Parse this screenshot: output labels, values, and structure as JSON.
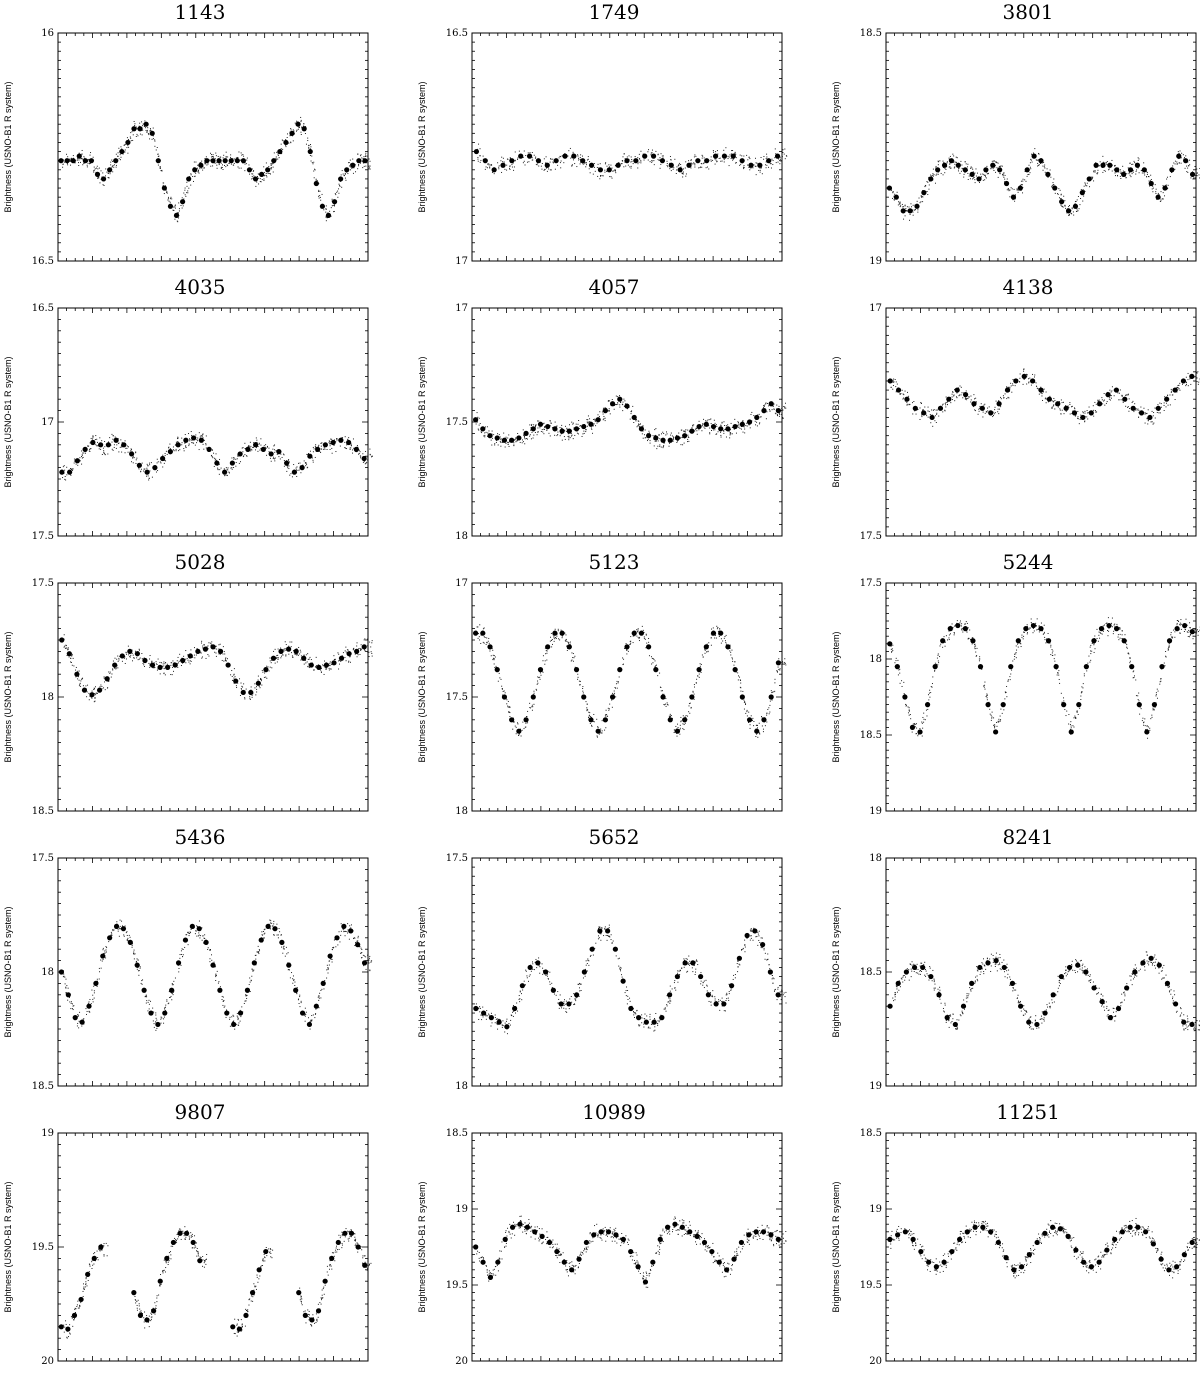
{
  "ylabel": "Brightness (USNO-B1 R system)",
  "charts": [
    {
      "title": "1143",
      "ylim": [
        16,
        16.5
      ],
      "yticks": [
        "16",
        "16.5"
      ],
      "series": [
        {
          "name": "",
          "values": [
            16.28,
            16.28,
            16.28,
            16.27,
            16.28,
            16.28,
            16.31,
            16.32,
            16.3,
            16.28,
            16.26,
            16.24,
            16.21,
            16.21,
            16.2,
            16.22,
            16.28,
            16.34,
            16.38,
            16.4,
            16.37,
            16.32,
            16.3,
            16.29,
            16.28,
            16.28,
            16.28,
            16.28,
            16.28,
            16.28,
            16.28,
            16.3,
            16.32,
            16.31,
            16.3,
            16.28,
            16.26,
            16.24,
            16.22,
            16.2,
            16.21,
            16.26,
            16.33,
            16.38,
            16.4,
            16.37,
            16.32,
            16.3,
            16.29,
            16.28,
            16.28
          ]
        }
      ]
    },
    {
      "title": "1749",
      "ylim": [
        16.5,
        17
      ],
      "yticks": [
        "16.5",
        "17"
      ],
      "series": [
        {
          "name": "",
          "values": [
            16.76,
            16.78,
            16.8,
            16.79,
            16.78,
            16.77,
            16.77,
            16.78,
            16.79,
            16.78,
            16.77,
            16.77,
            16.78,
            16.79,
            16.8,
            16.8,
            16.79,
            16.78,
            16.78,
            16.77,
            16.77,
            16.78,
            16.79,
            16.8,
            16.79,
            16.78,
            16.78,
            16.77,
            16.77,
            16.77,
            16.78,
            16.79,
            16.79,
            16.78,
            16.77
          ]
        }
      ]
    },
    {
      "title": "3801",
      "ylim": [
        18.5,
        19
      ],
      "yticks": [
        "18.5",
        "19"
      ],
      "series": [
        {
          "name": "",
          "values": [
            18.84,
            18.86,
            18.89,
            18.89,
            18.88,
            18.85,
            18.82,
            18.8,
            18.79,
            18.78,
            18.79,
            18.8,
            18.81,
            18.82,
            18.8,
            18.79,
            18.8,
            18.83,
            18.86,
            18.84,
            18.8,
            18.77,
            18.78,
            18.81,
            18.84,
            18.87,
            18.89,
            18.88,
            18.85,
            18.82,
            18.79,
            18.79,
            18.79,
            18.8,
            18.81,
            18.8,
            18.79,
            18.8,
            18.83,
            18.86,
            18.84,
            18.8,
            18.77,
            18.78,
            18.81
          ]
        }
      ]
    },
    {
      "title": "4035",
      "ylim": [
        16.5,
        17.5
      ],
      "yticks": [
        "16.5",
        "17",
        "17.5"
      ],
      "series": [
        {
          "name": "",
          "values": [
            17.22,
            17.22,
            17.17,
            17.12,
            17.09,
            17.1,
            17.1,
            17.08,
            17.1,
            17.14,
            17.19,
            17.22,
            17.2,
            17.16,
            17.13,
            17.1,
            17.08,
            17.07,
            17.08,
            17.12,
            17.18,
            17.22,
            17.18,
            17.14,
            17.12,
            17.1,
            17.12,
            17.14,
            17.13,
            17.18,
            17.22,
            17.2,
            17.15,
            17.12,
            17.1,
            17.09,
            17.08,
            17.09,
            17.12,
            17.16
          ]
        }
      ]
    },
    {
      "title": "4057",
      "ylim": [
        17,
        18
      ],
      "yticks": [
        "17",
        "17.5",
        "18"
      ],
      "series": [
        {
          "name": "",
          "values": [
            17.49,
            17.53,
            17.56,
            17.57,
            17.58,
            17.58,
            17.57,
            17.55,
            17.53,
            17.51,
            17.52,
            17.53,
            17.54,
            17.54,
            17.53,
            17.52,
            17.51,
            17.49,
            17.45,
            17.42,
            17.4,
            17.43,
            17.48,
            17.53,
            17.56,
            17.57,
            17.58,
            17.58,
            17.57,
            17.56,
            17.54,
            17.52,
            17.51,
            17.52,
            17.53,
            17.53,
            17.52,
            17.51,
            17.5,
            17.48,
            17.45,
            17.42,
            17.45
          ]
        }
      ]
    },
    {
      "title": "4138",
      "ylim": [
        17,
        17.5
      ],
      "yticks": [
        "17",
        "17.5"
      ],
      "series": [
        {
          "name": "",
          "values": [
            17.16,
            17.18,
            17.2,
            17.22,
            17.23,
            17.24,
            17.22,
            17.2,
            17.18,
            17.19,
            17.21,
            17.22,
            17.23,
            17.21,
            17.18,
            17.16,
            17.15,
            17.16,
            17.18,
            17.2,
            17.21,
            17.22,
            17.23,
            17.24,
            17.23,
            17.21,
            17.19,
            17.18,
            17.2,
            17.22,
            17.23,
            17.24,
            17.22,
            17.2,
            17.18,
            17.16,
            17.15
          ]
        }
      ]
    },
    {
      "title": "5028",
      "ylim": [
        17.5,
        18.5
      ],
      "yticks": [
        "17.5",
        "18",
        "18.5"
      ],
      "series": [
        {
          "name": "",
          "values": [
            17.75,
            17.81,
            17.9,
            17.97,
            17.99,
            17.97,
            17.92,
            17.86,
            17.82,
            17.8,
            17.81,
            17.84,
            17.86,
            17.87,
            17.87,
            17.86,
            17.84,
            17.82,
            17.8,
            17.79,
            17.78,
            17.8,
            17.86,
            17.93,
            17.98,
            17.98,
            17.94,
            17.88,
            17.83,
            17.8,
            17.79,
            17.8,
            17.83,
            17.86,
            17.87,
            17.86,
            17.85,
            17.83,
            17.81,
            17.8,
            17.78
          ]
        }
      ]
    },
    {
      "title": "5123",
      "ylim": [
        17,
        18
      ],
      "yticks": [
        "17",
        "17.5",
        "18"
      ],
      "series": [
        {
          "name": "",
          "values": [
            17.22,
            17.22,
            17.28,
            17.38,
            17.5,
            17.6,
            17.65,
            17.6,
            17.5,
            17.38,
            17.28,
            17.22,
            17.22,
            17.28,
            17.38,
            17.5,
            17.6,
            17.65,
            17.6,
            17.5,
            17.38,
            17.28,
            17.22,
            17.22,
            17.28,
            17.38,
            17.5,
            17.6,
            17.65,
            17.6,
            17.5,
            17.38,
            17.28,
            17.22,
            17.22,
            17.28,
            17.38,
            17.5,
            17.6,
            17.65,
            17.6,
            17.5,
            17.35
          ]
        }
      ]
    },
    {
      "title": "5244",
      "ylim": [
        17.5,
        19
      ],
      "yticks": [
        "17.5",
        "18",
        "18.5",
        "19"
      ],
      "series": [
        {
          "name": "",
          "values": [
            17.9,
            18.05,
            18.25,
            18.45,
            18.48,
            18.3,
            18.05,
            17.88,
            17.8,
            17.78,
            17.8,
            17.88,
            18.05,
            18.3,
            18.48,
            18.3,
            18.05,
            17.88,
            17.8,
            17.78,
            17.8,
            17.88,
            18.05,
            18.3,
            18.48,
            18.3,
            18.05,
            17.88,
            17.8,
            17.78,
            17.8,
            17.88,
            18.05,
            18.3,
            18.48,
            18.3,
            18.05,
            17.88,
            17.8,
            17.78,
            17.82
          ]
        }
      ]
    },
    {
      "title": "5436",
      "ylim": [
        17.5,
        18.5
      ],
      "yticks": [
        "17.5",
        "18",
        "18.5"
      ],
      "series": [
        {
          "name": "",
          "values": [
            18.0,
            18.1,
            18.2,
            18.22,
            18.15,
            18.05,
            17.93,
            17.85,
            17.8,
            17.81,
            17.87,
            17.97,
            18.08,
            18.18,
            18.23,
            18.18,
            18.08,
            17.96,
            17.86,
            17.8,
            17.81,
            17.87,
            17.97,
            18.08,
            18.18,
            18.23,
            18.18,
            18.08,
            17.96,
            17.86,
            17.8,
            17.81,
            17.87,
            17.97,
            18.08,
            18.18,
            18.23,
            18.15,
            18.05,
            17.93,
            17.85,
            17.8,
            17.82,
            17.88,
            17.96
          ]
        }
      ]
    },
    {
      "title": "5652",
      "ylim": [
        17.5,
        18
      ],
      "yticks": [
        "17.5",
        "18"
      ],
      "series": [
        {
          "name": "",
          "values": [
            17.83,
            17.84,
            17.85,
            17.86,
            17.87,
            17.83,
            17.78,
            17.74,
            17.73,
            17.75,
            17.79,
            17.82,
            17.82,
            17.8,
            17.75,
            17.7,
            17.66,
            17.66,
            17.7,
            17.77,
            17.83,
            17.85,
            17.86,
            17.86,
            17.85,
            17.8,
            17.76,
            17.73,
            17.73,
            17.76,
            17.8,
            17.82,
            17.82,
            17.78,
            17.72,
            17.67,
            17.66,
            17.69,
            17.75,
            17.8
          ]
        }
      ]
    },
    {
      "title": "8241",
      "ylim": [
        18,
        19
      ],
      "yticks": [
        "18",
        "18.5",
        "19"
      ],
      "series": [
        {
          "name": "",
          "values": [
            18.65,
            18.55,
            18.5,
            18.48,
            18.48,
            18.52,
            18.6,
            18.7,
            18.73,
            18.65,
            18.55,
            18.48,
            18.46,
            18.45,
            18.48,
            18.55,
            18.65,
            18.72,
            18.73,
            18.68,
            18.6,
            18.52,
            18.48,
            18.47,
            18.5,
            18.57,
            18.63,
            18.7,
            18.66,
            18.57,
            18.5,
            18.46,
            18.44,
            18.47,
            18.55,
            18.64,
            18.72,
            18.73
          ]
        }
      ]
    },
    {
      "title": "9807",
      "ylim": [
        19,
        20
      ],
      "yticks": [
        "19",
        "19.5",
        "20"
      ],
      "series": [
        {
          "name": "",
          "values": [
            19.85,
            19.86,
            19.8,
            19.73,
            19.62,
            19.55,
            19.5,
            null,
            null,
            null,
            null,
            19.7,
            19.8,
            19.82,
            19.78,
            19.65,
            19.55,
            19.48,
            19.44,
            19.44,
            19.48,
            19.56,
            null,
            null,
            null,
            null,
            19.85,
            19.86,
            19.8,
            19.7,
            19.6,
            19.52,
            null,
            null,
            null,
            null,
            19.7,
            19.8,
            19.82,
            19.78,
            19.65,
            19.55,
            19.48,
            19.44,
            19.44,
            19.5,
            19.58
          ]
        }
      ]
    },
    {
      "title": "10989",
      "ylim": [
        18.5,
        20
      ],
      "yticks": [
        "18.5",
        "19",
        "19.5",
        "20"
      ],
      "series": [
        {
          "name": "",
          "values": [
            19.25,
            19.35,
            19.45,
            19.35,
            19.2,
            19.12,
            19.1,
            19.12,
            19.15,
            19.18,
            19.22,
            19.28,
            19.35,
            19.4,
            19.33,
            19.22,
            19.17,
            19.15,
            19.15,
            19.17,
            19.2,
            19.28,
            19.38,
            19.48,
            19.35,
            19.2,
            19.12,
            19.1,
            19.12,
            19.15,
            19.18,
            19.22,
            19.28,
            19.35,
            19.4,
            19.33,
            19.22,
            19.17,
            19.15,
            19.15,
            19.17,
            19.2
          ]
        }
      ]
    },
    {
      "title": "11251",
      "ylim": [
        18.5,
        20
      ],
      "yticks": [
        "18.5",
        "19",
        "19.5",
        "20"
      ],
      "series": [
        {
          "name": "",
          "values": [
            19.2,
            19.17,
            19.15,
            19.2,
            19.28,
            19.35,
            19.38,
            19.35,
            19.28,
            19.2,
            19.15,
            19.12,
            19.12,
            19.15,
            19.22,
            19.32,
            19.4,
            19.38,
            19.3,
            19.22,
            19.16,
            19.12,
            19.13,
            19.18,
            19.27,
            19.35,
            19.38,
            19.35,
            19.27,
            19.2,
            19.15,
            19.12,
            19.12,
            19.15,
            19.23,
            19.33,
            19.4,
            19.38,
            19.3,
            19.22
          ]
        }
      ]
    }
  ]
}
